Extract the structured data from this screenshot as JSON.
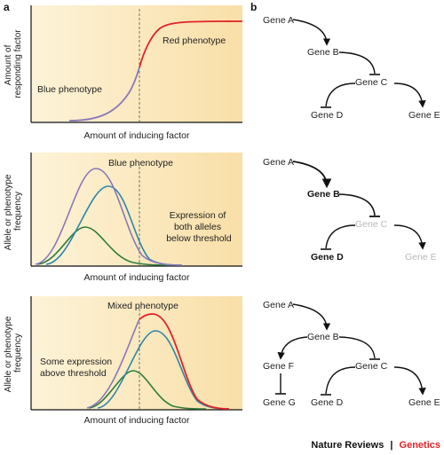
{
  "panel_a": {
    "letter": "a",
    "colors": {
      "bg_left": "#FDF3D8",
      "bg_right": "#F9DFA8",
      "purple": "#8A78B8",
      "red": "#E0242A",
      "teal": "#2E86A8",
      "green": "#2E7D3A"
    },
    "plot1": {
      "ylabel": [
        "Amount of",
        "responding factor"
      ],
      "xlabel": "Amount of inducing factor",
      "left_label": "Blue phenotype",
      "right_label": "Red phenotype"
    },
    "plot2": {
      "ylabel": [
        "Allele or phenotype",
        "frequency"
      ],
      "xlabel": "Amount of inducing factor",
      "top_label": "Blue phenotype",
      "right_label": [
        "Expression of",
        "both alleles",
        "below threshold"
      ]
    },
    "plot3": {
      "ylabel": [
        "Allele or phenotype",
        "frequency"
      ],
      "xlabel": "Amount of inducing factor",
      "top_label": "Mixed phenotype",
      "left_label": [
        "Some expression",
        "above threshold"
      ]
    }
  },
  "panel_b": {
    "letter": "b",
    "net1": {
      "a": "Gene A",
      "b": "Gene B",
      "c": "Gene C",
      "d": "Gene D",
      "e": "Gene E"
    },
    "net2": {
      "a": "Gene A",
      "b": "Gene B",
      "c": "Gene C",
      "d": "Gene D",
      "e": "Gene E"
    },
    "net3": {
      "a": "Gene A",
      "b": "Gene B",
      "c": "Gene C",
      "d": "Gene D",
      "e": "Gene E",
      "f": "Gene F",
      "g": "Gene G"
    }
  },
  "footer": {
    "journal": "Nature Reviews",
    "separator": "|",
    "section": "Genetics"
  }
}
